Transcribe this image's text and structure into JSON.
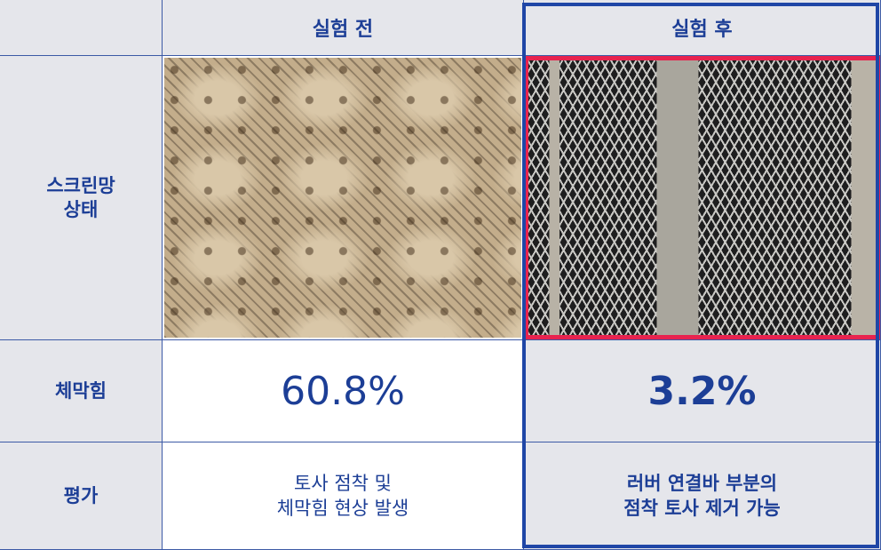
{
  "table": {
    "columns": [
      "실험 전",
      "실험 후"
    ],
    "rows": [
      {
        "label": [
          "스크린망",
          "상태"
        ]
      },
      {
        "label": [
          "체막힘"
        ],
        "cells": [
          "60.8%",
          "3.2%"
        ]
      },
      {
        "label": [
          "평가"
        ],
        "cells": [
          [
            "토사 점착 및",
            "체막힘 현상 발생"
          ],
          [
            "러버 연결바 부분의",
            "점착 토사 제거 가능"
          ]
        ]
      }
    ]
  }
}
